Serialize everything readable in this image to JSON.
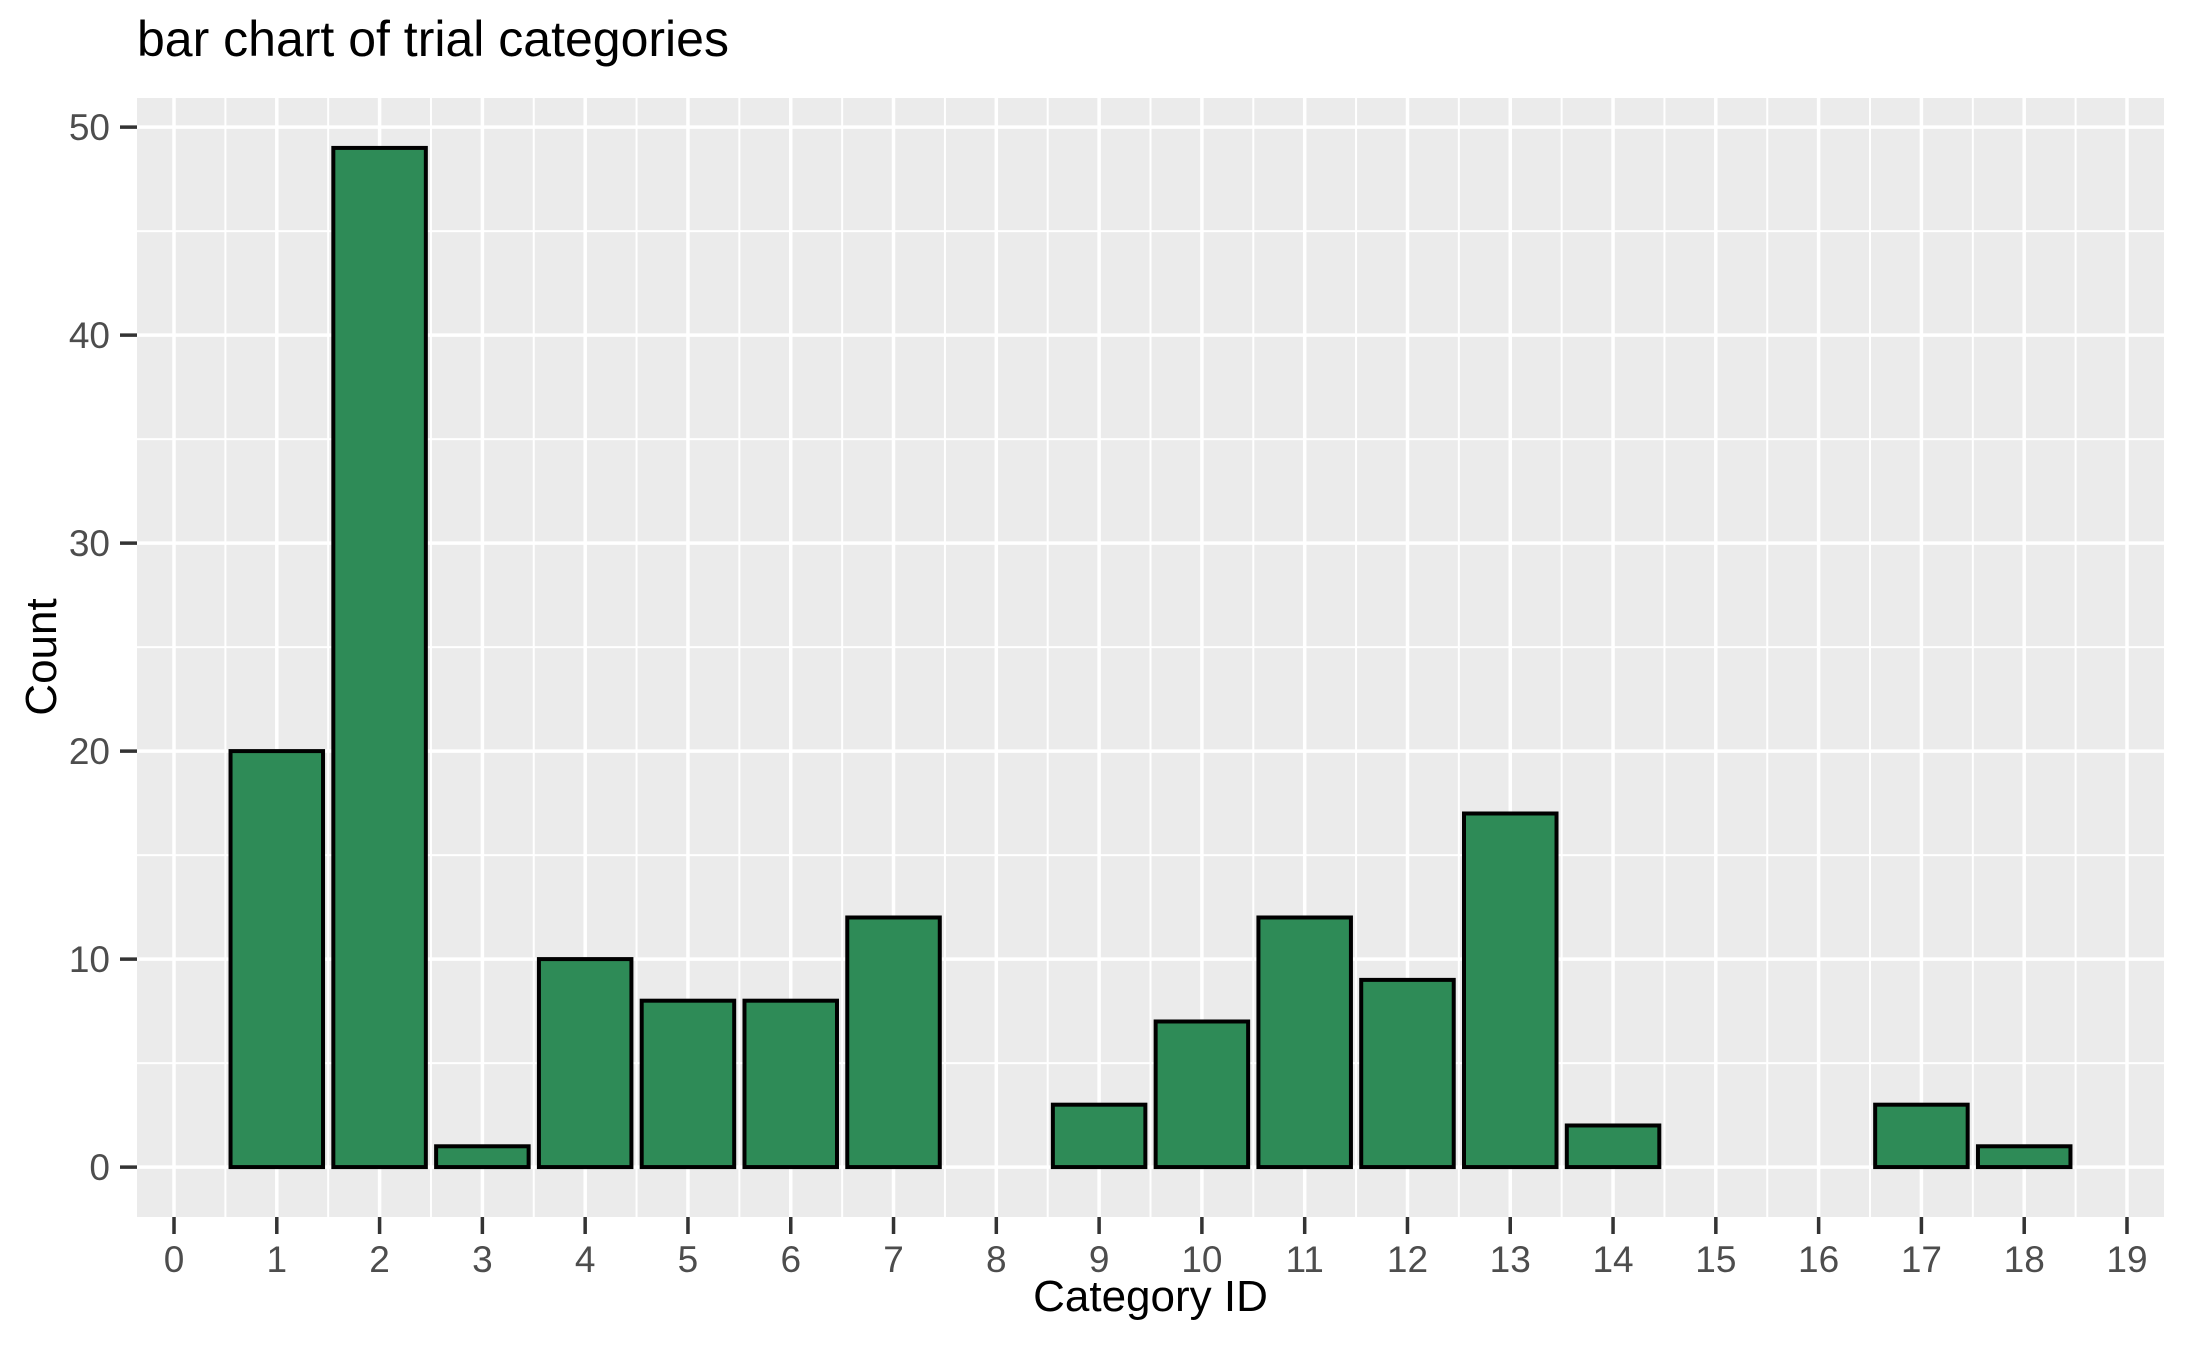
{
  "chart_data": {
    "type": "bar",
    "title": "bar chart of trial categories",
    "xlabel": "Category ID",
    "ylabel": "Count",
    "categories": [
      0,
      1,
      2,
      3,
      4,
      5,
      6,
      7,
      8,
      9,
      10,
      11,
      12,
      13,
      14,
      15,
      16,
      17,
      18,
      19
    ],
    "values": [
      0,
      20,
      49,
      1,
      10,
      8,
      8,
      12,
      0,
      3,
      7,
      12,
      9,
      17,
      2,
      0,
      0,
      3,
      1,
      0
    ],
    "x_ticks": [
      0,
      1,
      2,
      3,
      4,
      5,
      6,
      7,
      8,
      9,
      10,
      11,
      12,
      13,
      14,
      15,
      16,
      17,
      18,
      19
    ],
    "y_ticks": [
      0,
      10,
      20,
      30,
      40,
      50
    ],
    "y_minor_ticks": [
      5,
      15,
      25,
      35,
      45
    ],
    "x_minor_step": 0.5,
    "xlim": [
      -0.36,
      19.36
    ],
    "ylim": [
      -2.4,
      51.4
    ],
    "bar_width": 0.9,
    "grid": true,
    "legend": false,
    "style": {
      "bar_fill": "#2e8b57",
      "bar_stroke": "#000000",
      "panel_bg": "#ebebeb",
      "grid_color": "#ffffff",
      "tick_label_color": "#4d4d4d",
      "tick_mark_color": "#333333",
      "title_color": "#000000"
    }
  }
}
